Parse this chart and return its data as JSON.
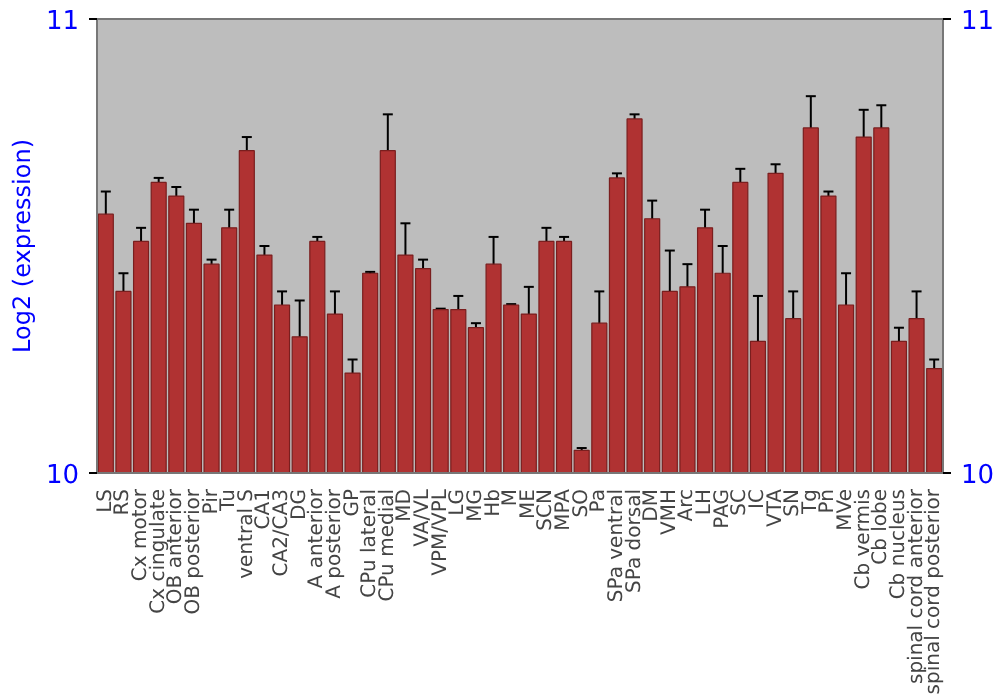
{
  "chart_data": {
    "type": "bar",
    "ylabel": "Log2 (expression)",
    "categories": [
      "LS",
      "RS",
      "Cx motor",
      "Cx cingulate",
      "OB anterior",
      "OB posterior",
      "Pir",
      "Tu",
      "ventral S",
      "CA1",
      "CA2/CA3",
      "DG",
      "A anterior",
      "A posterior",
      "GP",
      "CPu lateral",
      "CPu medial",
      "MD",
      "VA/VL",
      "VPM/VPL",
      "LG",
      "MG",
      "Hb",
      "M",
      "ME",
      "SCN",
      "MPA",
      "SO",
      "Pa",
      "SPa ventral",
      "SPa dorsal",
      "DM",
      "VMH",
      "Arc",
      "LH",
      "PAG",
      "SC",
      "IC",
      "VTA",
      "SN",
      "Tg",
      "Pn",
      "MVe",
      "Cb vermis",
      "Cb lobe",
      "Cb nucleus",
      "spinal cord anterior",
      "spinal cord posterior"
    ],
    "values": [
      10.57,
      10.4,
      10.51,
      10.64,
      10.61,
      10.55,
      10.46,
      10.54,
      10.71,
      10.48,
      10.37,
      10.3,
      10.51,
      10.35,
      10.22,
      10.44,
      10.71,
      10.48,
      10.45,
      10.36,
      10.36,
      10.32,
      10.46,
      10.37,
      10.35,
      10.51,
      10.51,
      10.05,
      10.33,
      10.65,
      10.78,
      10.56,
      10.4,
      10.41,
      10.54,
      10.44,
      10.64,
      10.29,
      10.66,
      10.34,
      10.76,
      10.61,
      10.37,
      10.74,
      10.76,
      10.29,
      10.34,
      10.23
    ],
    "errors": [
      0.05,
      0.04,
      0.03,
      0.01,
      0.02,
      0.03,
      0.01,
      0.04,
      0.03,
      0.02,
      0.03,
      0.08,
      0.01,
      0.05,
      0.03,
      0.003,
      0.08,
      0.07,
      0.02,
      0.002,
      0.03,
      0.01,
      0.06,
      0.002,
      0.06,
      0.03,
      0.01,
      0.005,
      0.07,
      0.01,
      0.01,
      0.04,
      0.09,
      0.05,
      0.04,
      0.06,
      0.03,
      0.1,
      0.02,
      0.06,
      0.07,
      0.01,
      0.07,
      0.06,
      0.05,
      0.03,
      0.06,
      0.02
    ],
    "color": "#b03232",
    "ylim": [
      10,
      11
    ],
    "yticks": [
      10,
      11
    ],
    "y2lim": [
      10,
      11
    ],
    "y2ticks": [
      10,
      11
    ],
    "grid": false
  }
}
